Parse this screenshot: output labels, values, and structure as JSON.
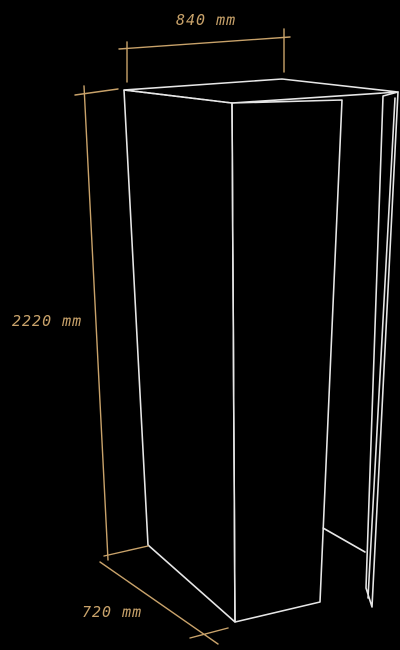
{
  "dimensions": {
    "width": "840 mm",
    "height": "2220 mm",
    "depth": "720 mm"
  },
  "colors": {
    "background": "#000000",
    "edges": "#e6e6e6",
    "dimension": "#c8a26a"
  }
}
